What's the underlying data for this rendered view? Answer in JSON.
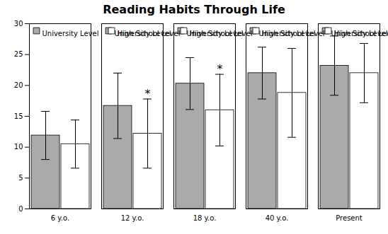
{
  "chart_data": {
    "type": "bar",
    "title": "Reading Habits Through Life",
    "categories": [
      "6 y.o.",
      "12 y.o.",
      "18 y.o.",
      "40 y.o.",
      "Present"
    ],
    "series": [
      {
        "name": "University Level",
        "color": "#aaaaaa",
        "values": [
          11.9,
          16.7,
          20.3,
          22.0,
          23.2
        ],
        "errors": [
          3.9,
          5.3,
          4.2,
          4.2,
          4.8
        ]
      },
      {
        "name": "High School Level",
        "color": "#ffffff",
        "values": [
          10.5,
          12.2,
          16.0,
          18.8,
          22.0
        ],
        "errors": [
          3.9,
          5.6,
          5.8,
          7.2,
          4.8
        ]
      }
    ],
    "annotations": [
      {
        "text": "*",
        "category": "12 y.o.",
        "series": "High School Level"
      },
      {
        "text": "*",
        "category": "18 y.o.",
        "series": "High School Level"
      }
    ],
    "ylim": [
      0,
      30
    ],
    "yticks": [
      0,
      5,
      10,
      15,
      20,
      25,
      30
    ],
    "grid": false,
    "legend": "upper left"
  }
}
